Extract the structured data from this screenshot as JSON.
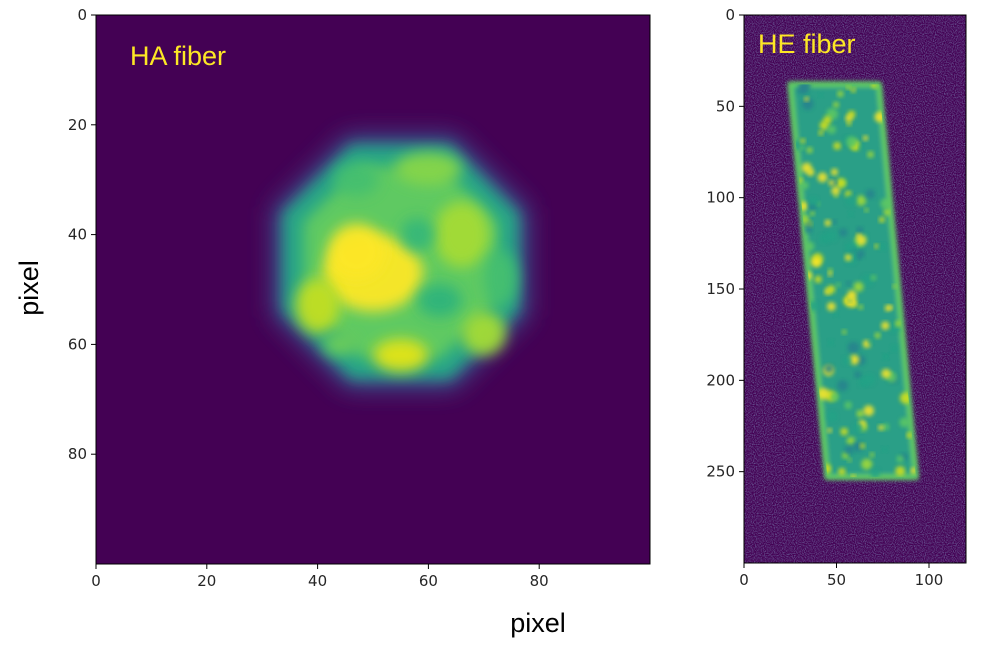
{
  "figure": {
    "xlabel": "pixel",
    "ylabel": "pixel"
  },
  "colors": {
    "background": "#440154",
    "title": "#fde725",
    "colormap": [
      "#440154",
      "#3b528b",
      "#21918c",
      "#5ec962",
      "#fde725"
    ]
  },
  "chart_data": [
    {
      "type": "heatmap",
      "title": "HA fiber",
      "colormap": "viridis",
      "xlim": [
        0,
        100
      ],
      "ylim": [
        100,
        0
      ],
      "xticks": [
        0,
        20,
        40,
        60,
        80
      ],
      "yticks": [
        0,
        20,
        40,
        60,
        80
      ],
      "xtick_labels": [
        "0",
        "20",
        "40",
        "60",
        "80"
      ],
      "ytick_labels": [
        "0",
        "20",
        "40",
        "60",
        "80"
      ],
      "shape": "octagonal fiber cross-section",
      "center": [
        55,
        45
      ],
      "radius": 23,
      "peak_region": [
        50,
        47
      ],
      "value_range": [
        0,
        1
      ]
    },
    {
      "type": "heatmap",
      "title": "HE fiber",
      "colormap": "viridis",
      "xlim": [
        0,
        120
      ],
      "ylim": [
        300,
        0
      ],
      "xticks": [
        0,
        50,
        100
      ],
      "yticks": [
        0,
        50,
        100,
        150,
        200,
        250
      ],
      "xtick_labels": [
        "0",
        "50",
        "100"
      ],
      "ytick_labels": [
        "0",
        "50",
        "100",
        "150",
        "200",
        "250"
      ],
      "shape": "tilted rectangular fiber cross-section",
      "corners": [
        [
          25,
          38
        ],
        [
          73,
          38
        ],
        [
          93,
          253
        ],
        [
          45,
          253
        ]
      ],
      "value_range": [
        0,
        1
      ]
    }
  ]
}
